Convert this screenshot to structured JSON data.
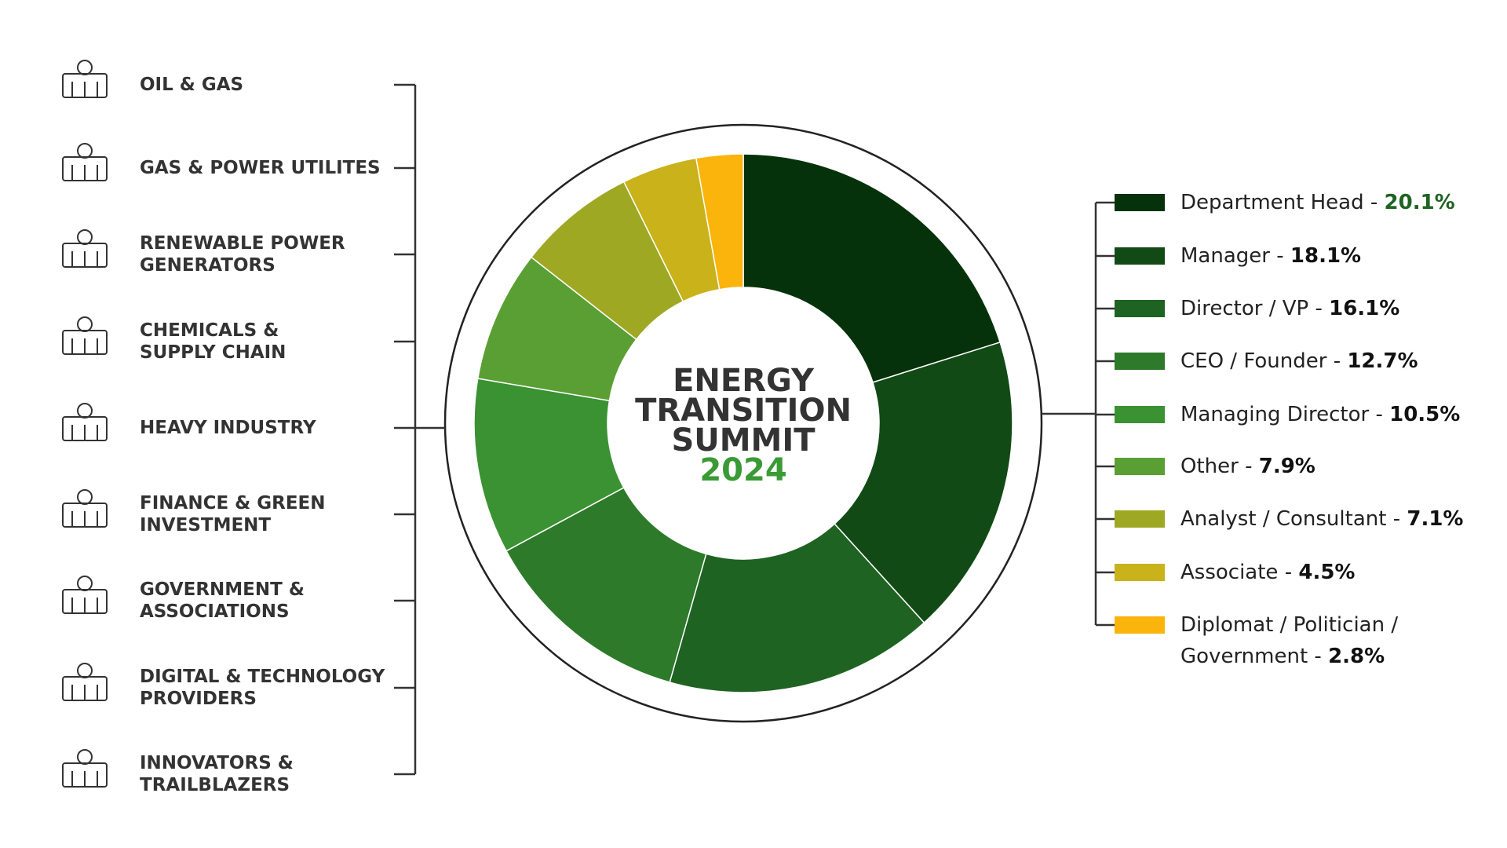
{
  "chart_data": {
    "type": "pie",
    "title": [
      "ENERGY",
      "TRANSITION",
      "SUMMIT"
    ],
    "subtitle": "2024",
    "categories": [
      "Department Head",
      "Manager",
      "Director / VP",
      "CEO / Founder",
      "Managing Director",
      "Other",
      "Analyst / Consultant",
      "Associate",
      "Diplomat / Politician / Government"
    ],
    "values": [
      20.1,
      18.1,
      16.1,
      12.7,
      10.5,
      7.9,
      7.1,
      4.5,
      2.8
    ],
    "value_labels": [
      "20.1%",
      "18.1%",
      "16.1%",
      "12.7%",
      "10.5%",
      "7.9%",
      "7.1%",
      "4.5%",
      "2.8%"
    ],
    "colors": [
      "#06320b",
      "#124a16",
      "#1e6322",
      "#2d7a2a",
      "#3a9233",
      "#5a9f33",
      "#9ea823",
      "#c9b21a",
      "#fbb40c"
    ],
    "separator": "-"
  },
  "sectors": [
    [
      "OIL & GAS"
    ],
    [
      "GAS & POWER UTILITES"
    ],
    [
      "RENEWABLE POWER",
      "GENERATORS"
    ],
    [
      "CHEMICALS &",
      "SUPPLY CHAIN"
    ],
    [
      "HEAVY INDUSTRY"
    ],
    [
      "FINANCE & GREEN",
      "INVESTMENT"
    ],
    [
      "GOVERNMENT &",
      "ASSOCIATIONS"
    ],
    [
      "DIGITAL & TECHNOLOGY",
      "PROVIDERS"
    ],
    [
      "INNOVATORS &",
      "TRAILBLAZERS"
    ]
  ]
}
